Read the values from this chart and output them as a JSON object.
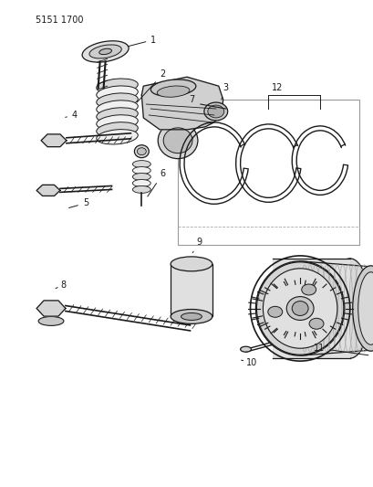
{
  "title": "5151 1700",
  "bg_color": "#ffffff",
  "line_color": "#1a1a1a",
  "fig_w": 4.1,
  "fig_h": 5.33,
  "dpi": 100
}
